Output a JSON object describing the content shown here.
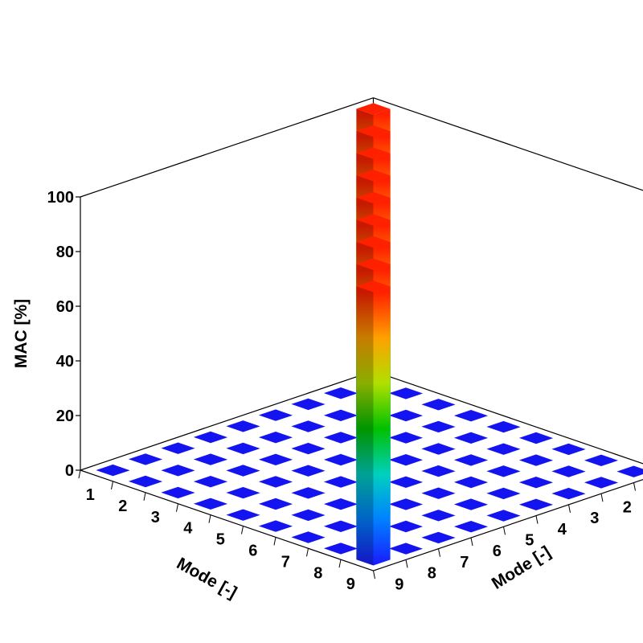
{
  "chart_data": {
    "type": "3d-bar",
    "zlabel": "MAC [%]",
    "xlabel": "Mode [-]",
    "ylabel": "Mode [-]",
    "zlim": [
      0,
      100
    ],
    "z_ticks": [
      "0",
      "20",
      "40",
      "60",
      "80",
      "100"
    ],
    "x_ticks": [
      "1",
      "2",
      "3",
      "4",
      "5",
      "6",
      "7",
      "8",
      "9"
    ],
    "y_ticks": [
      "1",
      "2",
      "3",
      "4",
      "5",
      "6",
      "7",
      "8",
      "9"
    ],
    "grid": false,
    "colormap": [
      "#1a1aff",
      "#0080ff",
      "#00d0c0",
      "#00c000",
      "#b0e000",
      "#ffa000",
      "#ff2000"
    ],
    "matrix": [
      [
        100,
        0,
        0,
        0,
        0,
        0,
        0,
        0,
        0
      ],
      [
        0,
        100,
        0,
        0,
        0,
        0,
        0,
        0,
        0
      ],
      [
        0,
        0,
        100,
        0,
        0,
        0,
        0,
        0,
        0
      ],
      [
        0,
        0,
        0,
        100,
        0,
        0,
        0,
        0,
        0
      ],
      [
        0,
        0,
        0,
        0,
        100,
        0,
        0,
        0,
        0
      ],
      [
        0,
        0,
        0,
        0,
        0,
        100,
        0,
        0,
        0
      ],
      [
        0,
        0,
        0,
        0,
        0,
        0,
        100,
        0,
        0
      ],
      [
        0,
        0,
        0,
        0,
        0,
        0,
        0,
        100,
        0
      ],
      [
        0,
        0,
        0,
        0,
        0,
        0,
        0,
        0,
        100
      ]
    ]
  }
}
